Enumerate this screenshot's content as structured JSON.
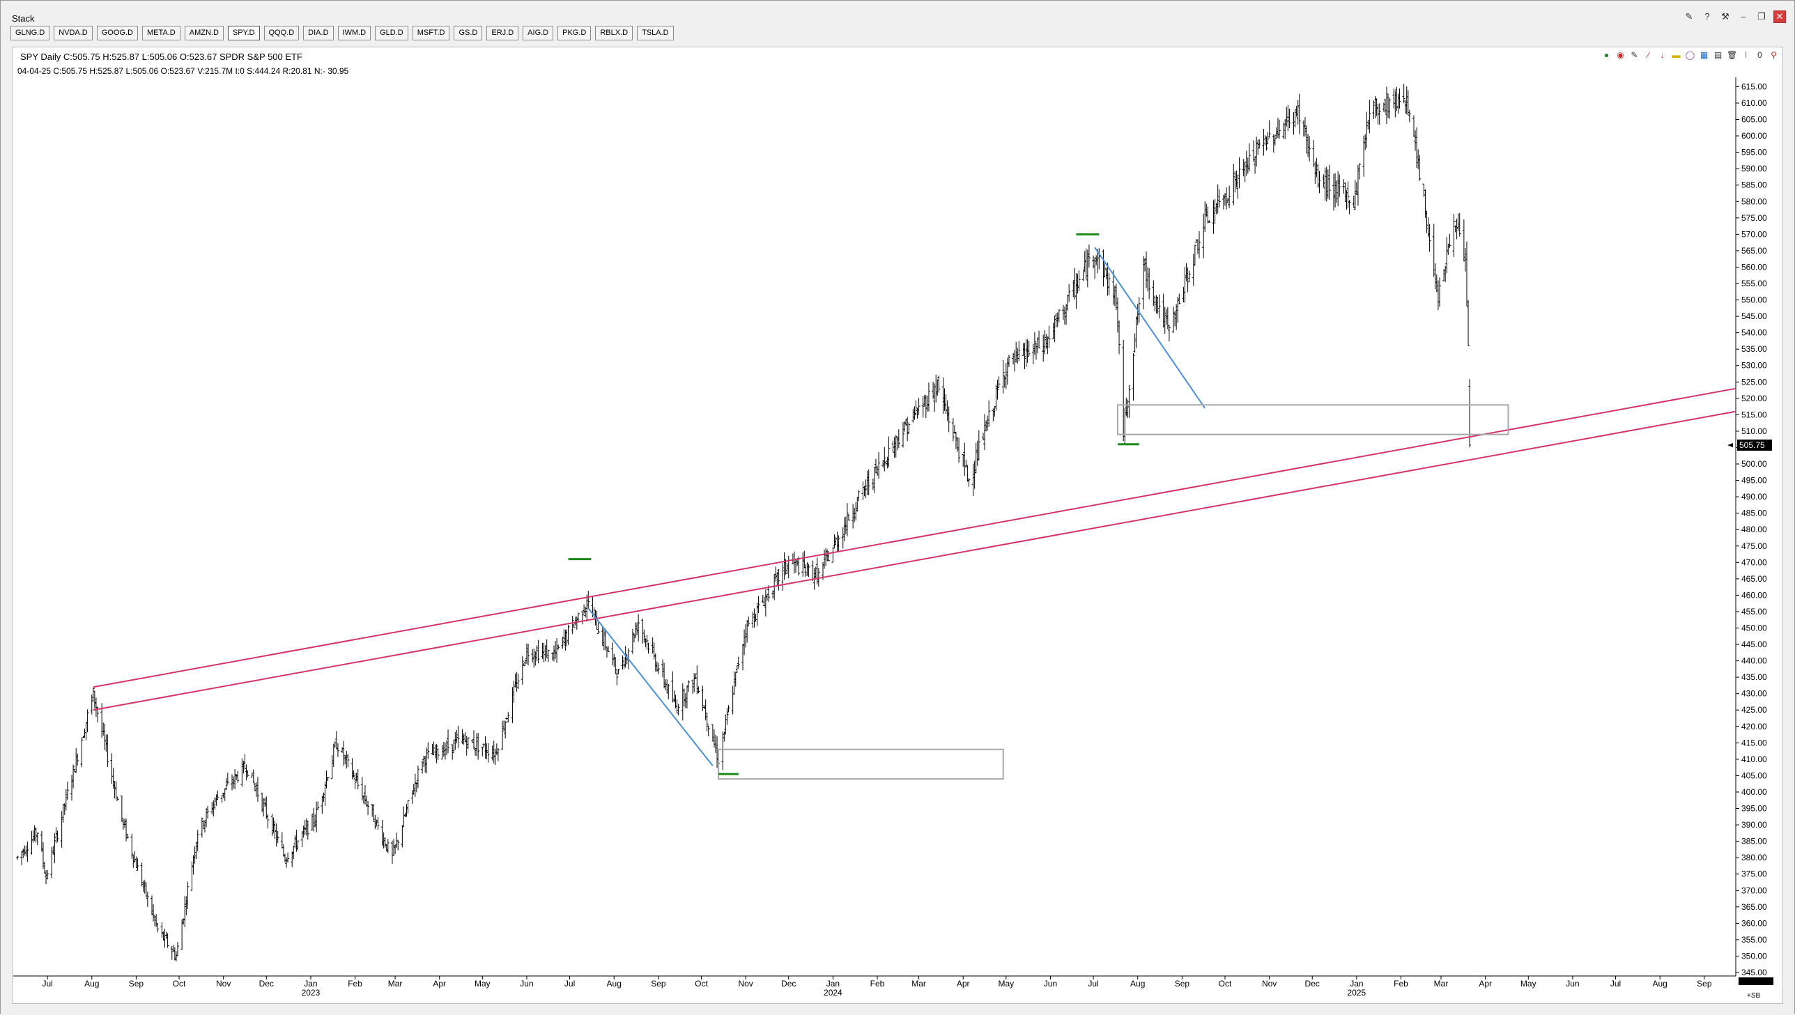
{
  "window": {
    "title": "Stack"
  },
  "tabs": [
    "GLNG.D",
    "NVDA.D",
    "GOOG.D",
    "META.D",
    "AMZN.D",
    "SPY.D",
    "QQQ.D",
    "DIA.D",
    "IWM.D",
    "GLD.D",
    "MSFT.D",
    "GS.D",
    "ERJ.D",
    "AIG.D",
    "PKG.D",
    "RBLX.D",
    "TSLA.D"
  ],
  "active_tab": "SPY.D",
  "header": {
    "line1": "SPY Daily C:505.75 H:525.87 L:505.06 O:523.67 SPDR S&P 500 ETF",
    "line2": "04-04-25  C:505.75  H:525.87  L:505.06  O:523.67  V:215.7M  I:0  S:444.24  R:20.81  N:- 30.95"
  },
  "window_controls": [
    "edit-icon",
    "help-icon",
    "tools-icon",
    "minimize-icon",
    "restore-icon",
    "close-icon"
  ],
  "toolbar_icons": [
    "globe-icon",
    "cycle-icon",
    "pencil-icon",
    "fib-icon",
    "arrow-down-icon",
    "rectangle-icon",
    "circle-icon",
    "grid-icon",
    "table-icon",
    "trash-icon",
    "settings-icon",
    "zero-icon",
    "pin-icon"
  ],
  "chart_data": {
    "type": "ohlc-bar",
    "symbol": "SPY",
    "interval": "Daily",
    "ylim": [
      345,
      617
    ],
    "y_ticks": [
      345,
      350,
      355,
      360,
      365,
      370,
      375,
      380,
      385,
      390,
      395,
      400,
      405,
      410,
      415,
      420,
      425,
      430,
      435,
      440,
      445,
      450,
      455,
      460,
      465,
      470,
      475,
      480,
      485,
      490,
      495,
      500,
      505,
      510,
      515,
      520,
      525,
      530,
      535,
      540,
      545,
      550,
      555,
      560,
      565,
      570,
      575,
      580,
      585,
      590,
      595,
      600,
      605,
      610,
      615
    ],
    "x_month_labels": [
      {
        "label": "Jul",
        "date": "2022-07-15"
      },
      {
        "label": "Aug",
        "date": "2022-08-15"
      },
      {
        "label": "Sep",
        "date": "2022-09-15"
      },
      {
        "label": "Oct",
        "date": "2022-10-15"
      },
      {
        "label": "Nov",
        "date": "2022-11-15"
      },
      {
        "label": "Dec",
        "date": "2022-12-15"
      },
      {
        "label": "Jan",
        "date": "2023-01-15"
      },
      {
        "label": "Feb",
        "date": "2023-02-15"
      },
      {
        "label": "Mar",
        "date": "2023-03-15"
      },
      {
        "label": "Apr",
        "date": "2023-04-15"
      },
      {
        "label": "May",
        "date": "2023-05-15"
      },
      {
        "label": "Jun",
        "date": "2023-06-15"
      },
      {
        "label": "Jul",
        "date": "2023-07-15"
      },
      {
        "label": "Aug",
        "date": "2023-08-15"
      },
      {
        "label": "Sep",
        "date": "2023-09-15"
      },
      {
        "label": "Oct",
        "date": "2023-10-15"
      },
      {
        "label": "Nov",
        "date": "2023-11-15"
      },
      {
        "label": "Dec",
        "date": "2023-12-15"
      },
      {
        "label": "Jan",
        "date": "2024-01-15"
      },
      {
        "label": "Feb",
        "date": "2024-02-15"
      },
      {
        "label": "Mar",
        "date": "2024-03-15"
      },
      {
        "label": "Apr",
        "date": "2024-04-15"
      },
      {
        "label": "May",
        "date": "2024-05-15"
      },
      {
        "label": "Jun",
        "date": "2024-06-15"
      },
      {
        "label": "Jul",
        "date": "2024-07-15"
      },
      {
        "label": "Aug",
        "date": "2024-08-15"
      },
      {
        "label": "Sep",
        "date": "2024-09-15"
      },
      {
        "label": "Oct",
        "date": "2024-10-15"
      },
      {
        "label": "Nov",
        "date": "2024-11-15"
      },
      {
        "label": "Dec",
        "date": "2024-12-15"
      },
      {
        "label": "Jan",
        "date": "2025-01-15"
      },
      {
        "label": "Feb",
        "date": "2025-02-15"
      },
      {
        "label": "Mar",
        "date": "2025-03-15"
      },
      {
        "label": "Apr",
        "date": "2025-04-15"
      },
      {
        "label": "May",
        "date": "2025-05-15"
      },
      {
        "label": "Jun",
        "date": "2025-06-15"
      },
      {
        "label": "Jul",
        "date": "2025-07-15"
      },
      {
        "label": "Aug",
        "date": "2025-08-15"
      },
      {
        "label": "Sep",
        "date": "2025-09-15"
      }
    ],
    "x_year_labels": [
      {
        "label": "2023",
        "date": "2023-01-15"
      },
      {
        "label": "2024",
        "date": "2024-01-15"
      },
      {
        "label": "2025",
        "date": "2025-01-15"
      }
    ],
    "x_range": [
      "2022-06-24",
      "2025-10-07"
    ],
    "price_path": [
      [
        "2022-06-24",
        380
      ],
      [
        "2022-07-08",
        388
      ],
      [
        "2022-07-14",
        374
      ],
      [
        "2022-08-16",
        430
      ],
      [
        "2022-09-06",
        390
      ],
      [
        "2022-09-30",
        358
      ],
      [
        "2022-10-13",
        350
      ],
      [
        "2022-10-28",
        388
      ],
      [
        "2022-11-10",
        398
      ],
      [
        "2022-12-01",
        408
      ],
      [
        "2022-12-28",
        380
      ],
      [
        "2023-01-18",
        392
      ],
      [
        "2023-02-02",
        415
      ],
      [
        "2023-02-24",
        396
      ],
      [
        "2023-03-13",
        380
      ],
      [
        "2023-04-03",
        410
      ],
      [
        "2023-05-01",
        416
      ],
      [
        "2023-05-24",
        412
      ],
      [
        "2023-06-15",
        443
      ],
      [
        "2023-07-05",
        442
      ],
      [
        "2023-07-27",
        458
      ],
      [
        "2023-08-18",
        436
      ],
      [
        "2023-09-01",
        452
      ],
      [
        "2023-09-27",
        426
      ],
      [
        "2023-10-11",
        435
      ],
      [
        "2023-10-27",
        410
      ],
      [
        "2023-11-15",
        450
      ],
      [
        "2023-12-15",
        470
      ],
      [
        "2024-01-05",
        466
      ],
      [
        "2024-01-31",
        488
      ],
      [
        "2024-02-29",
        508
      ],
      [
        "2024-03-28",
        524
      ],
      [
        "2024-04-19",
        495
      ],
      [
        "2024-05-15",
        530
      ],
      [
        "2024-06-12",
        537
      ],
      [
        "2024-07-16",
        565
      ],
      [
        "2024-07-31",
        550
      ],
      [
        "2024-08-05",
        510
      ],
      [
        "2024-08-19",
        560
      ],
      [
        "2024-09-06",
        540
      ],
      [
        "2024-09-30",
        573
      ],
      [
        "2024-11-11",
        598
      ],
      [
        "2024-12-06",
        607
      ],
      [
        "2024-12-18",
        587
      ],
      [
        "2025-01-13",
        580
      ],
      [
        "2025-01-24",
        608
      ],
      [
        "2025-02-19",
        612
      ],
      [
        "2025-03-13",
        552
      ],
      [
        "2025-03-25",
        575
      ],
      [
        "2025-04-01",
        560
      ],
      [
        "2025-04-03",
        536
      ],
      [
        "2025-04-04",
        505.75
      ]
    ],
    "last_bar": {
      "date": "2025-04-04",
      "open": 523.67,
      "high": 525.87,
      "low": 505.06,
      "close": 505.75
    },
    "price_label": "505.75",
    "corner_label": "+SB",
    "annotations": {
      "channel_lines": [
        {
          "color": "#d6336c",
          "from": [
            "2022-08-16",
            432
          ],
          "to": [
            "2025-10-07",
            523
          ]
        },
        {
          "color": "#d6336c",
          "from": [
            "2022-08-16",
            425
          ],
          "to": [
            "2025-10-07",
            516
          ]
        }
      ],
      "trend_lines": [
        {
          "color": "#4a90d9",
          "from": [
            "2023-07-28",
            456
          ],
          "to": [
            "2023-10-23",
            408
          ]
        },
        {
          "color": "#4a90d9",
          "from": [
            "2024-07-16",
            566
          ],
          "to": [
            "2024-10-01",
            517
          ]
        }
      ],
      "boxes": [
        {
          "from": [
            "2023-10-27",
            413
          ],
          "to": [
            "2024-05-13",
            404
          ]
        },
        {
          "from": [
            "2024-08-01",
            518
          ],
          "to": [
            "2025-05-01",
            509
          ]
        }
      ],
      "green_markers": [
        {
          "from": "2023-07-14",
          "to": "2023-07-30",
          "y": 471
        },
        {
          "from": "2023-10-27",
          "to": "2023-11-10",
          "y": 405.5
        },
        {
          "from": "2024-07-03",
          "to": "2024-07-19",
          "y": 570
        },
        {
          "from": "2024-08-01",
          "to": "2024-08-16",
          "y": 506
        }
      ]
    }
  }
}
